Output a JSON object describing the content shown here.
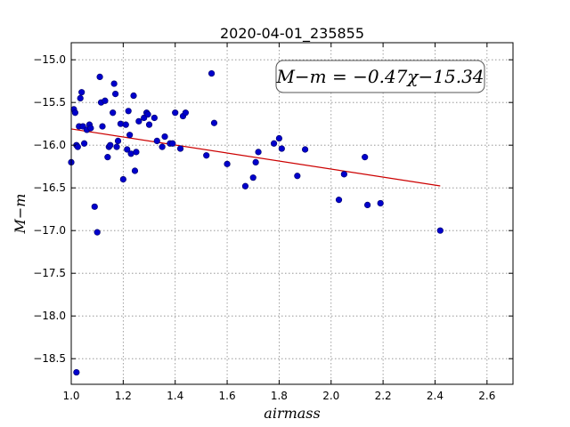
{
  "chart_data": {
    "type": "scatter",
    "title": "2020-04-01_235855",
    "xlabel": "airmass",
    "ylabel": "M−m",
    "xlim": [
      1.0,
      2.7
    ],
    "ylim": [
      -18.8,
      -14.8
    ],
    "y_inverted": true,
    "x_ticks": [
      "1.0",
      "1.2",
      "1.4",
      "1.6",
      "1.8",
      "2.0",
      "2.2",
      "2.4",
      "2.6"
    ],
    "y_ticks": [
      "−15.0",
      "−15.5",
      "−16.0",
      "−16.5",
      "−17.0",
      "−17.5",
      "−18.0",
      "−18.5"
    ],
    "grid": true,
    "annotation": "M−m = −0.47χ−15.34",
    "colors": {
      "points": "#0000cc",
      "fit_line": "#cc0000",
      "grid": "#888888"
    },
    "fit": {
      "slope": -0.47,
      "intercept": -15.34,
      "x_range": [
        1.0,
        2.42
      ]
    },
    "points": [
      [
        1.0,
        -16.2
      ],
      [
        1.01,
        -15.58
      ],
      [
        1.015,
        -15.62
      ],
      [
        1.02,
        -16.0
      ],
      [
        1.025,
        -16.02
      ],
      [
        1.03,
        -15.78
      ],
      [
        1.035,
        -15.45
      ],
      [
        1.04,
        -15.38
      ],
      [
        1.045,
        -15.78
      ],
      [
        1.05,
        -15.98
      ],
      [
        1.06,
        -15.82
      ],
      [
        1.07,
        -15.76
      ],
      [
        1.075,
        -15.8
      ],
      [
        1.09,
        -16.72
      ],
      [
        1.1,
        -17.02
      ],
      [
        1.11,
        -15.2
      ],
      [
        1.115,
        -15.5
      ],
      [
        1.12,
        -15.78
      ],
      [
        1.13,
        -15.48
      ],
      [
        1.14,
        -16.14
      ],
      [
        1.145,
        -16.02
      ],
      [
        1.15,
        -16.0
      ],
      [
        1.16,
        -15.62
      ],
      [
        1.165,
        -15.28
      ],
      [
        1.17,
        -15.4
      ],
      [
        1.175,
        -16.02
      ],
      [
        1.18,
        -15.95
      ],
      [
        1.19,
        -15.75
      ],
      [
        1.2,
        -16.4
      ],
      [
        1.21,
        -15.76
      ],
      [
        1.215,
        -16.05
      ],
      [
        1.22,
        -15.6
      ],
      [
        1.225,
        -15.88
      ],
      [
        1.23,
        -16.1
      ],
      [
        1.24,
        -15.42
      ],
      [
        1.245,
        -16.3
      ],
      [
        1.25,
        -16.08
      ],
      [
        1.26,
        -15.72
      ],
      [
        1.28,
        -15.68
      ],
      [
        1.29,
        -15.62
      ],
      [
        1.295,
        -15.64
      ],
      [
        1.3,
        -15.76
      ],
      [
        1.32,
        -15.68
      ],
      [
        1.33,
        -15.95
      ],
      [
        1.35,
        -16.02
      ],
      [
        1.36,
        -15.9
      ],
      [
        1.38,
        -15.98
      ],
      [
        1.39,
        -15.98
      ],
      [
        1.4,
        -15.62
      ],
      [
        1.42,
        -16.04
      ],
      [
        1.43,
        -15.66
      ],
      [
        1.44,
        -15.62
      ],
      [
        1.52,
        -16.12
      ],
      [
        1.54,
        -15.16
      ],
      [
        1.55,
        -15.74
      ],
      [
        1.6,
        -16.22
      ],
      [
        1.67,
        -16.48
      ],
      [
        1.7,
        -16.38
      ],
      [
        1.71,
        -16.2
      ],
      [
        1.72,
        -16.08
      ],
      [
        1.78,
        -15.98
      ],
      [
        1.8,
        -15.92
      ],
      [
        1.81,
        -16.04
      ],
      [
        1.87,
        -16.36
      ],
      [
        1.9,
        -16.05
      ],
      [
        2.03,
        -16.64
      ],
      [
        2.05,
        -16.34
      ],
      [
        2.13,
        -16.14
      ],
      [
        2.14,
        -16.7
      ],
      [
        2.19,
        -16.68
      ],
      [
        2.42,
        -17.0
      ],
      [
        1.02,
        -18.66
      ]
    ]
  }
}
